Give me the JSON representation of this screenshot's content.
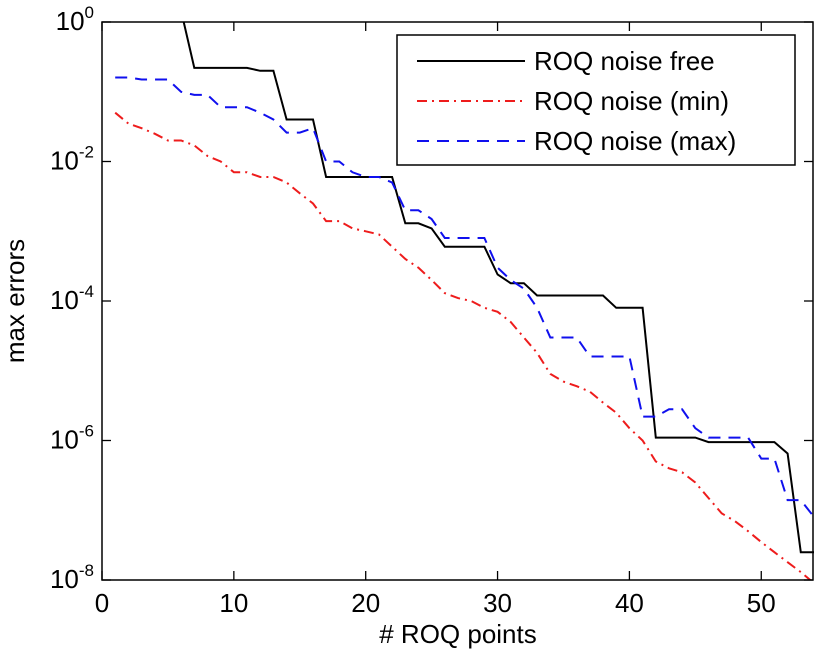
{
  "chart_data": {
    "type": "line",
    "title": "",
    "xlabel": "# ROQ points",
    "ylabel": "max errors",
    "xlim": [
      0,
      54
    ],
    "ylim": [
      1e-08,
      1
    ],
    "yscale": "log",
    "grid": false,
    "legend_position": "top-right",
    "x_ticks": [
      0,
      10,
      20,
      30,
      40,
      50
    ],
    "x_tick_labels": [
      "0",
      "10",
      "20",
      "30",
      "40",
      "50"
    ],
    "y_ticks": [
      1e-08,
      1e-06,
      0.0001,
      0.01,
      1
    ],
    "y_tick_labels": [
      {
        "base": "10",
        "exp": "-8"
      },
      {
        "base": "10",
        "exp": "-6"
      },
      {
        "base": "10",
        "exp": "-4"
      },
      {
        "base": "10",
        "exp": "-2"
      },
      {
        "base": "10",
        "exp": "0"
      }
    ],
    "series": [
      {
        "name": "ROQ noise free",
        "color": "#000000",
        "style": "solid",
        "x": [
          6.2,
          7,
          8,
          9,
          10,
          11,
          12,
          13,
          14,
          15,
          16,
          17,
          18,
          19,
          20,
          21,
          22,
          23,
          24,
          25,
          26,
          27,
          28,
          29,
          30,
          31,
          32,
          33,
          34,
          35,
          36,
          37,
          38,
          39,
          40,
          41,
          42,
          43,
          44,
          45,
          46,
          47,
          48,
          49,
          50,
          51,
          52,
          53,
          54
        ],
        "y": [
          1,
          0.22,
          0.22,
          0.22,
          0.22,
          0.22,
          0.2,
          0.2,
          0.04,
          0.04,
          0.04,
          0.006,
          0.006,
          0.006,
          0.006,
          0.006,
          0.006,
          0.0013,
          0.0013,
          0.0011,
          0.0006,
          0.0006,
          0.0006,
          0.0006,
          0.00024,
          0.00018,
          0.00018,
          0.00012,
          0.00012,
          0.00012,
          0.00012,
          0.00012,
          0.00012,
          8e-05,
          8e-05,
          8e-05,
          1.1e-06,
          1.1e-06,
          1.1e-06,
          1.1e-06,
          9.5e-07,
          9.5e-07,
          9.5e-07,
          9.5e-07,
          9.5e-07,
          9.5e-07,
          6.5e-07,
          2.5e-08,
          2.5e-08
        ]
      },
      {
        "name": "ROQ noise (min)",
        "color": "#ee1c1c",
        "style": "dashdot",
        "x": [
          1,
          2,
          3,
          4,
          5,
          6,
          7,
          8,
          9,
          10,
          11,
          12,
          13,
          14,
          15,
          16,
          17,
          18,
          19,
          20,
          21,
          22,
          23,
          24,
          25,
          26,
          27,
          28,
          29,
          30,
          31,
          32,
          33,
          34,
          35,
          36,
          37,
          38,
          39,
          40,
          41,
          42,
          43,
          44,
          45,
          46,
          47,
          48,
          49,
          50,
          51,
          52,
          53,
          54
        ],
        "y": [
          0.05,
          0.035,
          0.03,
          0.025,
          0.02,
          0.02,
          0.017,
          0.012,
          0.01,
          0.007,
          0.007,
          0.006,
          0.006,
          0.005,
          0.0035,
          0.0025,
          0.0014,
          0.0014,
          0.0011,
          0.001,
          0.0009,
          0.0006,
          0.0004,
          0.0003,
          0.0002,
          0.00013,
          0.00011,
          0.0001,
          8e-05,
          7e-05,
          5e-05,
          3e-05,
          1.8e-05,
          9e-06,
          7e-06,
          6e-06,
          5e-06,
          3.5e-06,
          2.5e-06,
          1.5e-06,
          1e-06,
          5e-07,
          4e-07,
          3.5e-07,
          2.5e-07,
          1.5e-07,
          9e-08,
          7e-08,
          5e-08,
          3.5e-08,
          2.5e-08,
          1.8e-08,
          1.3e-08,
          9e-09
        ]
      },
      {
        "name": "ROQ noise (max)",
        "color": "#1010ee",
        "style": "dashed",
        "x": [
          1,
          2,
          3,
          4,
          5,
          6,
          7,
          8,
          9,
          10,
          11,
          12,
          13,
          14,
          15,
          16,
          17,
          18,
          19,
          20,
          21,
          22,
          23,
          24,
          25,
          26,
          27,
          28,
          29,
          30,
          31,
          32,
          33,
          34,
          35,
          36,
          37,
          38,
          39,
          40,
          41,
          42,
          43,
          44,
          45,
          46,
          47,
          48,
          49,
          50,
          51,
          52,
          53,
          54
        ],
        "y": [
          0.16,
          0.16,
          0.15,
          0.15,
          0.15,
          0.1,
          0.09,
          0.09,
          0.06,
          0.06,
          0.06,
          0.05,
          0.04,
          0.026,
          0.026,
          0.03,
          0.01,
          0.01,
          0.007,
          0.006,
          0.006,
          0.005,
          0.002,
          0.002,
          0.0015,
          0.0008,
          0.0008,
          0.0008,
          0.0008,
          0.0003,
          0.0002,
          0.00015,
          8e-05,
          3e-05,
          3e-05,
          3e-05,
          1.6e-05,
          1.6e-05,
          1.6e-05,
          1.6e-05,
          2.2e-06,
          2.2e-06,
          2.8e-06,
          2.8e-06,
          1.5e-06,
          1.1e-06,
          1.1e-06,
          1.1e-06,
          1.1e-06,
          5.5e-07,
          5.5e-07,
          1.4e-07,
          1.4e-07,
          8e-08
        ]
      }
    ]
  }
}
